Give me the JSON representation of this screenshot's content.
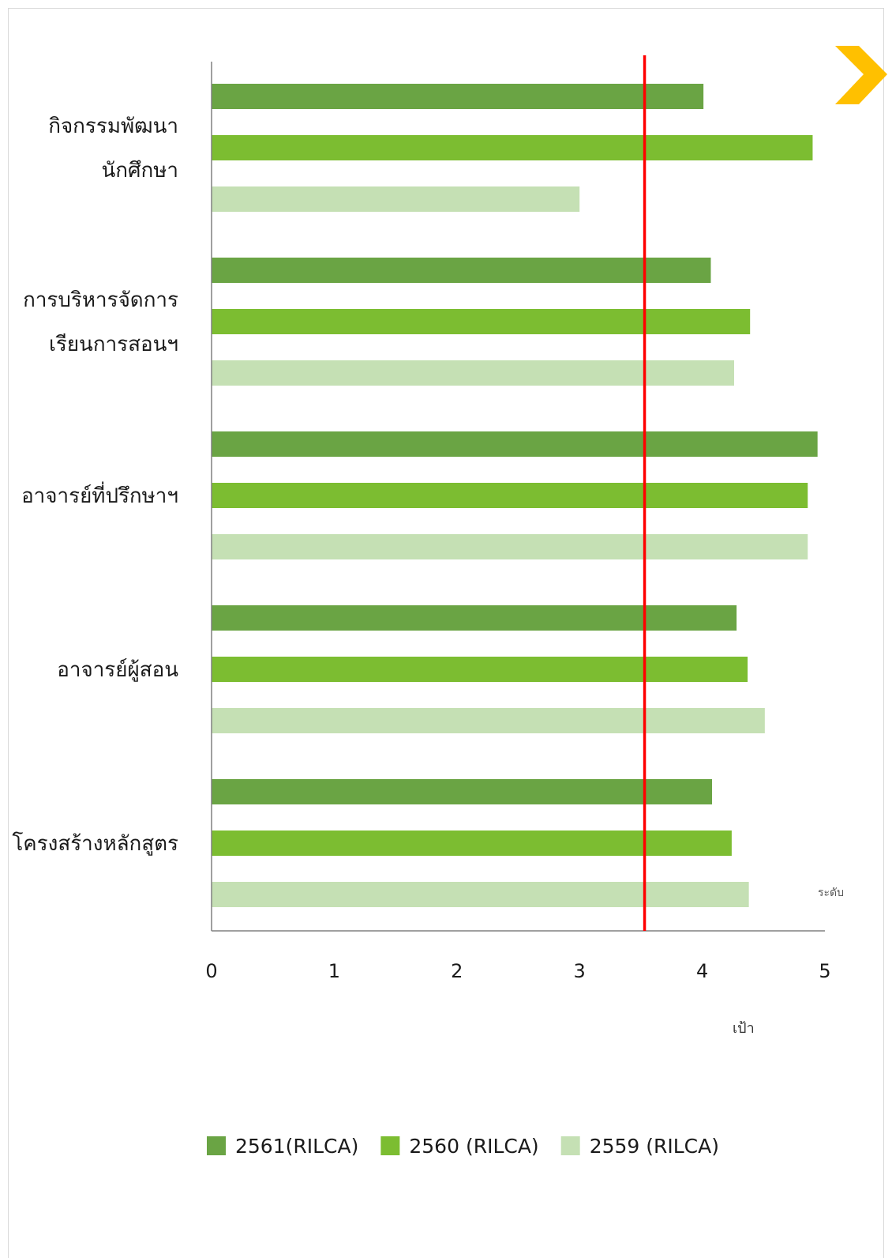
{
  "chart_data": {
    "type": "bar",
    "orientation": "horizontal",
    "title": "",
    "categories": [
      "กิจกรรมพัฒนานักศึกษา",
      "การบริหารจัดการเรียนการสอนฯ",
      "อาจารย์ที่ปรึกษาฯ",
      "อาจารย์ผู้สอน",
      "โครงสร้างหลักสูตร"
    ],
    "category_lines": [
      [
        "กิจกรรมพัฒนา",
        "นักศึกษา"
      ],
      [
        "การบริหารจัดการ",
        "เรียนการสอนฯ"
      ],
      [
        "อาจารย์ที่ปรึกษาฯ"
      ],
      [
        "อาจารย์ผู้สอน"
      ],
      [
        "โครงสร้างหลักสูตร"
      ]
    ],
    "series": [
      {
        "name": "2561(RILCA)",
        "color": "#6aa444",
        "values": [
          4.01,
          4.07,
          4.94,
          4.28,
          4.08
        ]
      },
      {
        "name": "2560 (RILCA)",
        "color": "#7cbd31",
        "values": [
          4.9,
          4.39,
          4.86,
          4.37,
          4.24
        ]
      },
      {
        "name": "2559 (RILCA)",
        "color": "#c5e0b4",
        "values": [
          3.0,
          4.26,
          4.86,
          4.51,
          4.38
        ]
      }
    ],
    "xlim": [
      0,
      5
    ],
    "x_ticks": [
      "0",
      "1",
      "2",
      "3",
      "4",
      "5"
    ],
    "target": {
      "value": 3.53,
      "label": "เป้า",
      "color": "#ff0000"
    },
    "level_label": "ระดับ",
    "legend_position": "bottom",
    "grid": false
  },
  "decoration": {
    "arrow_icon": "chevron-right-icon",
    "arrow_color": "#ffc000"
  }
}
